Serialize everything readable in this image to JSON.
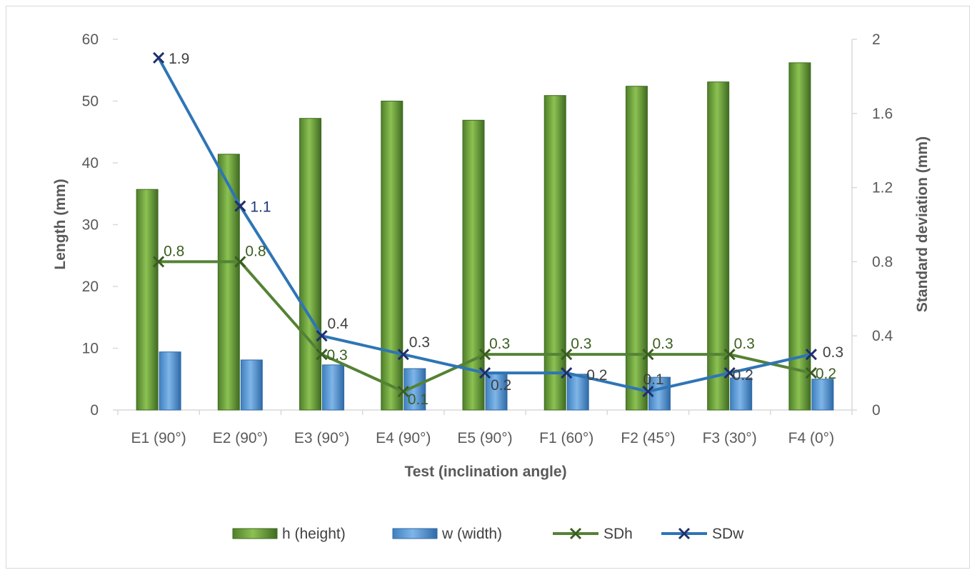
{
  "chart_data": {
    "type": "bar",
    "title": "",
    "categories": [
      "E1 (90°)",
      "E2 (90°)",
      "E3 (90°)",
      "E4 (90°)",
      "E5 (90°)",
      "F1 (60°)",
      "F2 (45°)",
      "F3 (30°)",
      "F4 (0°)"
    ],
    "xlabel": "Test (inclination angle)",
    "ylabel": "Length (mm)",
    "y2label": "Standard deviation (mm)",
    "ylim": [
      0,
      60
    ],
    "yticks": [
      "0",
      "10",
      "20",
      "30",
      "40",
      "50",
      "60"
    ],
    "y2lim": [
      0,
      2
    ],
    "y2ticks": [
      "0",
      "0.4",
      "0.8",
      "1.2",
      "1.6",
      "2"
    ],
    "series": [
      {
        "name": "h (height)",
        "kind": "bar",
        "axis": "left",
        "color": "#70a83c",
        "values": [
          35.7,
          41.4,
          47.2,
          50.0,
          46.9,
          50.9,
          52.4,
          53.1,
          56.2
        ]
      },
      {
        "name": "w (width)",
        "kind": "bar",
        "axis": "left",
        "color": "#5b9bd5",
        "values": [
          9.4,
          8.1,
          7.3,
          6.7,
          6.0,
          5.8,
          5.3,
          5.2,
          5.0
        ]
      },
      {
        "name": "SDh",
        "kind": "line",
        "axis": "right",
        "color": "#548235",
        "label_color": "#3a5e1f",
        "values": [
          0.8,
          0.8,
          0.3,
          0.1,
          0.3,
          0.3,
          0.3,
          0.3,
          0.2
        ],
        "labels": [
          "0.8",
          "0.8",
          "0.3",
          "0.1",
          "0.3",
          "0.3",
          "0.3",
          "0.3",
          "0.2"
        ]
      },
      {
        "name": "SDw",
        "kind": "line",
        "axis": "right",
        "color": "#2e75b6",
        "label_color": "#404040",
        "values": [
          1.9,
          1.1,
          0.4,
          0.3,
          0.2,
          0.2,
          0.1,
          0.2,
          0.3
        ],
        "labels": [
          "1.9",
          "1.1",
          "0.4",
          "0.3",
          "0.2",
          "0.2",
          "0.1",
          "0.2",
          "0.3"
        ]
      }
    ],
    "legend": "bottom",
    "grid": false
  }
}
